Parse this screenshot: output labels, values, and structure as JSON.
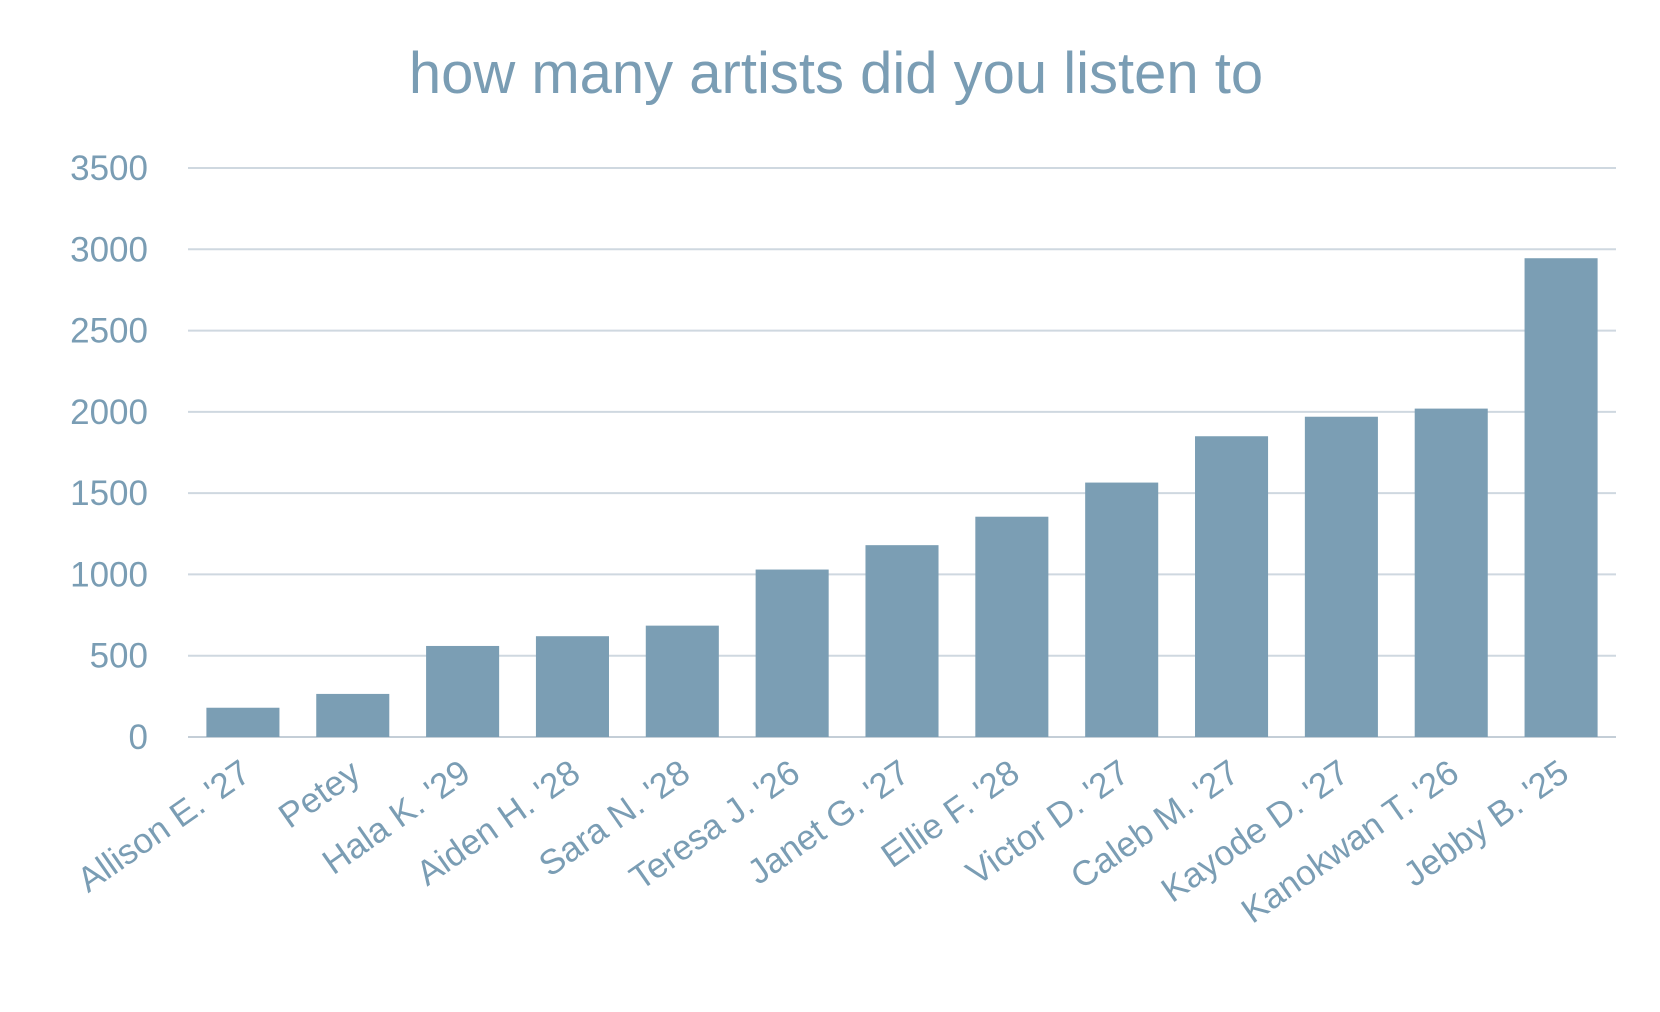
{
  "chart_data": {
    "type": "bar",
    "title": "how many artists did you listen to",
    "xlabel": "",
    "ylabel": "",
    "categories": [
      "Allison E. '27",
      "Petey",
      "Hala K. '29",
      "Aiden H. '28",
      "Sara N. '28",
      "Teresa J. '26",
      "Janet G. '27",
      "Ellie F. '28",
      "Victor D. '27",
      "Caleb M. '27",
      "Kayode D. '27",
      "Kanokwan T. '26",
      "Jebby B. '25"
    ],
    "values": [
      180,
      265,
      560,
      620,
      685,
      1030,
      1180,
      1355,
      1565,
      1850,
      1970,
      2020,
      2945
    ],
    "yticks": [
      "0",
      "500",
      "1000",
      "1500",
      "2000",
      "2500",
      "3000",
      "3500"
    ],
    "ylim": [
      0,
      3500
    ],
    "grid": true,
    "legend": "none",
    "colors": {
      "bar": "#7b9eb4",
      "text": "#7a9db4",
      "grid": "#cfd8e0"
    }
  }
}
